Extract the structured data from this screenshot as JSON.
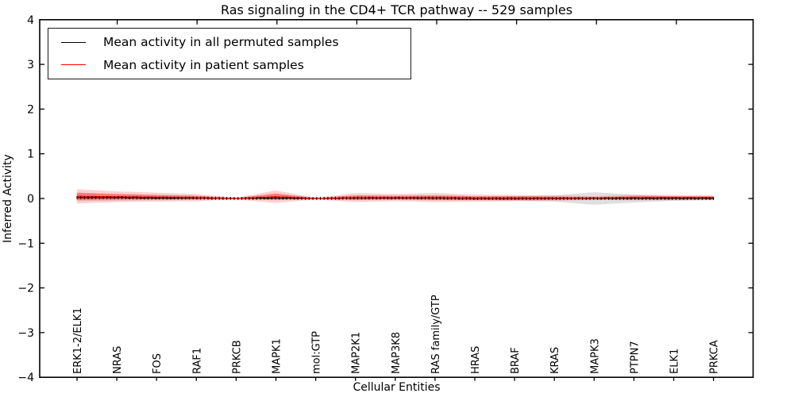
{
  "colors": {
    "frame": "#000000",
    "permuted_line": "#000000",
    "patient_line": "#ff0000",
    "patient_band": "#ff0000",
    "permuted_band": "#808080",
    "background": "#ffffff"
  },
  "chart_data": {
    "type": "line",
    "title": "Ras signaling in the CD4+ TCR pathway -- 529 samples",
    "xlabel": "Cellular Entities",
    "ylabel": "Inferred Activity",
    "ylim": [
      -4,
      4
    ],
    "yticks": [
      -4,
      -3,
      -2,
      -1,
      0,
      1,
      2,
      3,
      4
    ],
    "grid": false,
    "legend_position": "upper left",
    "categories": [
      "ERK1-2/ELK1",
      "NRAS",
      "FOS",
      "RAF1",
      "PRKCB",
      "MAPK1",
      "mol:GTP",
      "MAP2K1",
      "MAP3K8",
      "RAS family/GTP",
      "HRAS",
      "BRAF",
      "KRAS",
      "MAPK3",
      "PTPN7",
      "ELK1",
      "PRKCA"
    ],
    "n_points": 171,
    "points_between_labels": 10,
    "series": [
      {
        "name": "Mean activity in all permuted samples",
        "color": "#000000",
        "values": [
          0.02,
          0.02,
          0.01,
          0.01,
          0.0,
          0.01,
          0.0,
          0.01,
          0.01,
          0.01,
          0.0,
          0.0,
          0.0,
          0.0,
          0.0,
          0.0,
          0.0
        ]
      },
      {
        "name": "Mean activity in patient samples",
        "color": "#ff0000",
        "values": [
          0.05,
          0.04,
          0.03,
          0.02,
          0.0,
          0.04,
          0.0,
          0.02,
          0.02,
          0.02,
          0.01,
          0.01,
          0.01,
          0.01,
          0.02,
          0.02,
          0.02
        ]
      }
    ],
    "bands": [
      {
        "name": "permuted samples spread",
        "color": "#808080",
        "alpha": 0.25,
        "half_width": [
          0.06,
          0.05,
          0.04,
          0.03,
          0.01,
          0.02,
          0.01,
          0.03,
          0.03,
          0.04,
          0.04,
          0.05,
          0.07,
          0.14,
          0.09,
          0.05,
          0.04
        ]
      },
      {
        "name": "patient samples spread (outer)",
        "color": "#ff0000",
        "alpha": 0.18,
        "half_width": [
          0.16,
          0.12,
          0.1,
          0.08,
          0.02,
          0.14,
          0.02,
          0.1,
          0.08,
          0.1,
          0.08,
          0.07,
          0.06,
          0.04,
          0.06,
          0.06,
          0.05
        ]
      },
      {
        "name": "patient samples spread (inner)",
        "color": "#ff0000",
        "alpha": 0.42,
        "half_width": [
          0.08,
          0.06,
          0.05,
          0.04,
          0.01,
          0.07,
          0.01,
          0.05,
          0.04,
          0.05,
          0.04,
          0.04,
          0.03,
          0.02,
          0.03,
          0.03,
          0.03
        ]
      }
    ]
  }
}
